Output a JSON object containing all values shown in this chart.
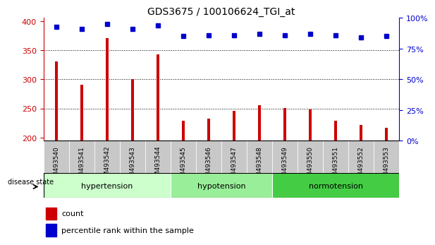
{
  "title": "GDS3675 / 100106624_TGI_at",
  "samples": [
    "GSM493540",
    "GSM493541",
    "GSM493542",
    "GSM493543",
    "GSM493544",
    "GSM493545",
    "GSM493546",
    "GSM493547",
    "GSM493548",
    "GSM493549",
    "GSM493550",
    "GSM493551",
    "GSM493552",
    "GSM493553"
  ],
  "bar_values": [
    330,
    290,
    370,
    300,
    343,
    229,
    232,
    246,
    256,
    251,
    248,
    229,
    221,
    217
  ],
  "dot_values": [
    93,
    91,
    95,
    91,
    94,
    85,
    86,
    86,
    87,
    86,
    87,
    86,
    84,
    85
  ],
  "bar_color": "#cc0000",
  "dot_color": "#0000cc",
  "ylim_left": [
    195,
    405
  ],
  "ylim_right": [
    0,
    100
  ],
  "yticks_left": [
    200,
    250,
    300,
    350,
    400
  ],
  "yticks_right": [
    0,
    25,
    50,
    75,
    100
  ],
  "groups": [
    {
      "label": "hypertension",
      "start": 0,
      "end": 4,
      "color": "#ccffcc"
    },
    {
      "label": "hypotension",
      "start": 5,
      "end": 8,
      "color": "#99ee99"
    },
    {
      "label": "normotension",
      "start": 9,
      "end": 13,
      "color": "#44cc44"
    }
  ],
  "cell_bg": "#c8c8c8",
  "legend_count_label": "count",
  "legend_percentile_label": "percentile rank within the sample",
  "disease_state_label": "disease state",
  "right_axis_label_color": "#0000cc",
  "left_axis_label_color": "#cc0000",
  "grid_color": "#555555",
  "background_color": "#ffffff"
}
